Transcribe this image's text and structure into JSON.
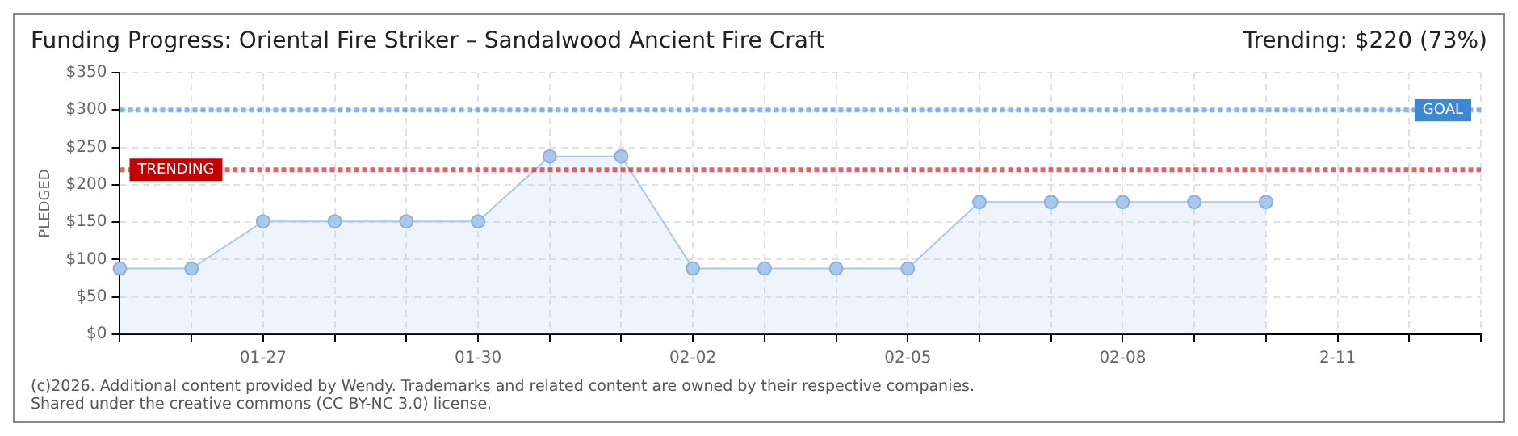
{
  "chart_data": {
    "type": "area",
    "title": "Funding Progress: Oriental Fire Striker – Sandalwood Ancient Fire Craft",
    "subtitle": "Trending: $220 (73%)",
    "ylabel": "PLEDGED",
    "categories": [
      null,
      null,
      "01-27",
      null,
      null,
      "01-30",
      null,
      null,
      "02-02",
      null,
      null,
      "02-05",
      null,
      null,
      "02-08",
      null,
      null,
      "2-11",
      null,
      null
    ],
    "series": [
      {
        "color": "#a8c8ec",
        "values": [
          88,
          88,
          151,
          151,
          151,
          151,
          238,
          238,
          88,
          88,
          88,
          88,
          177,
          177,
          177,
          177,
          177,
          null,
          null,
          null
        ]
      }
    ],
    "ylim": [
      0,
      350
    ],
    "yticks": [
      {
        "value": 0,
        "label": "$0"
      },
      {
        "value": 50,
        "label": "$50"
      },
      {
        "value": 100,
        "label": "$100"
      },
      {
        "value": 150,
        "label": "$150"
      },
      {
        "value": 200,
        "label": "$200"
      },
      {
        "value": 250,
        "label": "$250"
      },
      {
        "value": 300,
        "label": "$300"
      },
      {
        "value": 350,
        "label": "$350"
      }
    ],
    "ref_lines": [
      {
        "axis": "y",
        "value": 300,
        "label": "GOAL",
        "color": "#3d88d4",
        "line_style": "dotted"
      },
      {
        "axis": "y",
        "value": 220,
        "label": "TRENDING",
        "color": "#c40000",
        "line_style": "dotted"
      }
    ],
    "annotations": [
      "(c)2026. Additional content provided by Wendy. Trademarks and related content are owned by their respective companies.",
      "Shared under the creative commons (CC BY-NC 3.0) license."
    ],
    "grid": true,
    "marker": "circle",
    "legend": false
  }
}
